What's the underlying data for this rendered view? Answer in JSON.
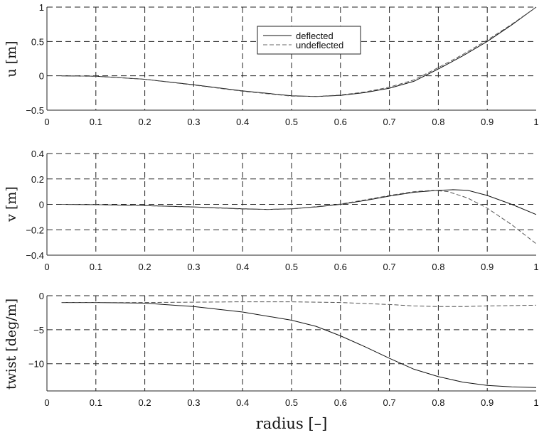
{
  "chart_data": [
    {
      "type": "line",
      "ylabel": "u [m]",
      "xlabel": "",
      "xlim": [
        0,
        1
      ],
      "ylim": [
        -0.5,
        1
      ],
      "xticks": [
        "0",
        "0.1",
        "0.2",
        "0.3",
        "0.4",
        "0.5",
        "0.6",
        "0.7",
        "0.8",
        "0.9",
        "1"
      ],
      "yticks": [
        "-0.5",
        "0",
        "0.5",
        "1"
      ],
      "grid": true,
      "legend": {
        "placement": "top-center",
        "entries": [
          "deflected",
          "undeflected"
        ]
      },
      "series": [
        {
          "name": "deflected",
          "style": "solid",
          "x": [
            0.03,
            0.1,
            0.2,
            0.3,
            0.4,
            0.5,
            0.55,
            0.6,
            0.65,
            0.7,
            0.75,
            0.8,
            0.85,
            0.9,
            0.95,
            1.0
          ],
          "y": [
            0,
            -0.005,
            -0.05,
            -0.13,
            -0.22,
            -0.29,
            -0.3,
            -0.285,
            -0.245,
            -0.18,
            -0.08,
            0.1,
            0.29,
            0.5,
            0.74,
            1.0
          ]
        },
        {
          "name": "undeflected",
          "style": "dashed",
          "x": [
            0.03,
            0.1,
            0.2,
            0.3,
            0.4,
            0.5,
            0.55,
            0.6,
            0.65,
            0.7,
            0.75,
            0.8,
            0.85,
            0.9,
            0.95,
            1.0
          ],
          "y": [
            0,
            -0.005,
            -0.05,
            -0.135,
            -0.225,
            -0.295,
            -0.3,
            -0.28,
            -0.235,
            -0.165,
            -0.06,
            0.12,
            0.31,
            0.52,
            0.75,
            1.0
          ]
        }
      ]
    },
    {
      "type": "line",
      "ylabel": "v [m]",
      "xlabel": "",
      "xlim": [
        0,
        1
      ],
      "ylim": [
        -0.4,
        0.4
      ],
      "xticks": [
        "0",
        "0.1",
        "0.2",
        "0.3",
        "0.4",
        "0.5",
        "0.6",
        "0.7",
        "0.8",
        "0.9",
        "1"
      ],
      "yticks": [
        "-0.4",
        "-0.2",
        "0",
        "0.2",
        "0.4"
      ],
      "grid": true,
      "series": [
        {
          "name": "deflected",
          "style": "solid",
          "x": [
            0.03,
            0.1,
            0.2,
            0.3,
            0.4,
            0.45,
            0.5,
            0.55,
            0.6,
            0.65,
            0.7,
            0.75,
            0.8,
            0.83,
            0.86,
            0.9,
            0.95,
            1.0
          ],
          "y": [
            0,
            -0.002,
            -0.01,
            -0.02,
            -0.035,
            -0.04,
            -0.035,
            -0.02,
            0,
            0.03,
            0.065,
            0.095,
            0.11,
            0.115,
            0.11,
            0.07,
            0.0,
            -0.08
          ]
        },
        {
          "name": "undeflected",
          "style": "dashed",
          "x": [
            0.03,
            0.1,
            0.2,
            0.3,
            0.4,
            0.45,
            0.5,
            0.55,
            0.6,
            0.65,
            0.7,
            0.75,
            0.79,
            0.82,
            0.86,
            0.9,
            0.95,
            1.0
          ],
          "y": [
            0,
            -0.002,
            -0.01,
            -0.022,
            -0.037,
            -0.04,
            -0.035,
            -0.018,
            0.002,
            0.035,
            0.07,
            0.1,
            0.11,
            0.1,
            0.05,
            -0.03,
            -0.16,
            -0.31
          ]
        }
      ]
    },
    {
      "type": "line",
      "ylabel": "twist [deg/m]",
      "xlabel": "radius [–]",
      "xlim": [
        0,
        1
      ],
      "ylim": [
        -14,
        0
      ],
      "xticks": [
        "0",
        "0.1",
        "0.2",
        "0.3",
        "0.4",
        "0.5",
        "0.6",
        "0.7",
        "0.8",
        "0.9",
        "1"
      ],
      "yticks": [
        "-10",
        "-5",
        "0"
      ],
      "grid": true,
      "series": [
        {
          "name": "deflected",
          "style": "solid",
          "x": [
            0.03,
            0.1,
            0.2,
            0.3,
            0.4,
            0.5,
            0.55,
            0.6,
            0.65,
            0.7,
            0.75,
            0.8,
            0.85,
            0.9,
            0.95,
            1.0
          ],
          "y": [
            -1,
            -1,
            -1.1,
            -1.6,
            -2.4,
            -3.6,
            -4.5,
            -5.9,
            -7.5,
            -9.2,
            -10.8,
            -11.9,
            -12.7,
            -13.2,
            -13.4,
            -13.5
          ]
        },
        {
          "name": "undeflected",
          "style": "dashed",
          "x": [
            0.03,
            0.1,
            0.2,
            0.3,
            0.4,
            0.5,
            0.6,
            0.7,
            0.75,
            0.8,
            0.85,
            0.9,
            0.95,
            1.0
          ],
          "y": [
            -1,
            -1,
            -1,
            -0.95,
            -0.9,
            -0.9,
            -1,
            -1.3,
            -1.5,
            -1.6,
            -1.6,
            -1.5,
            -1.45,
            -1.4
          ]
        }
      ]
    }
  ]
}
